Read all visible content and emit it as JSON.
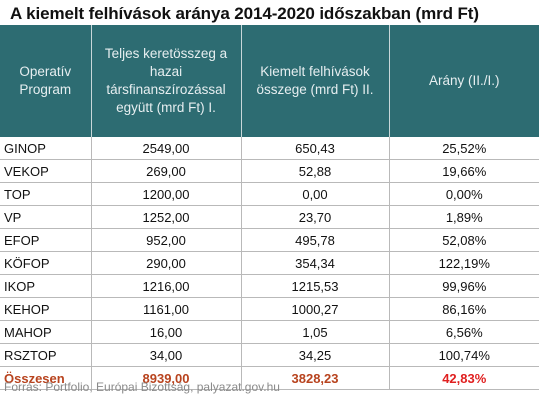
{
  "title": "A kiemelt felhívások aránya 2014-2020 időszakban (mrd Ft)",
  "headers": {
    "program": "Operatív Program",
    "total": "Teljes keretösszeg a hazai társfinanszírozással együtt (mrd Ft) I.",
    "highlighted": "Kiemelt felhívások összege (mrd Ft)     II.",
    "ratio": "Arány (II./I.)"
  },
  "rows": [
    {
      "program": "GINOP",
      "total": "2549,00",
      "highlighted": "650,43",
      "ratio": "25,52%"
    },
    {
      "program": "VEKOP",
      "total": "269,00",
      "highlighted": "52,88",
      "ratio": "19,66%"
    },
    {
      "program": "TOP",
      "total": "1200,00",
      "highlighted": "0,00",
      "ratio": "0,00%"
    },
    {
      "program": "VP",
      "total": "1252,00",
      "highlighted": "23,70",
      "ratio": "1,89%"
    },
    {
      "program": "EFOP",
      "total": "952,00",
      "highlighted": "495,78",
      "ratio": "52,08%"
    },
    {
      "program": "KÖFOP",
      "total": "290,00",
      "highlighted": "354,34",
      "ratio": "122,19%"
    },
    {
      "program": "IKOP",
      "total": "1216,00",
      "highlighted": "1215,53",
      "ratio": "99,96%"
    },
    {
      "program": "KEHOP",
      "total": "1161,00",
      "highlighted": "1000,27",
      "ratio": "86,16%"
    },
    {
      "program": "MAHOP",
      "total": "16,00",
      "highlighted": "1,05",
      "ratio": "6,56%"
    },
    {
      "program": "RSZTOP",
      "total": "34,00",
      "highlighted": "34,25",
      "ratio": "100,74%"
    }
  ],
  "summary": {
    "program": "Összesen",
    "total": "8939,00",
    "highlighted": "3828,23",
    "ratio": "42,83%"
  },
  "source": "Forrás: Portfolio, Európai Bizottság, palyazat.gov.hu",
  "colors": {
    "header_bg": "#2d6c72",
    "total_text": "#b8431e",
    "total_ratio": "#e02020"
  }
}
